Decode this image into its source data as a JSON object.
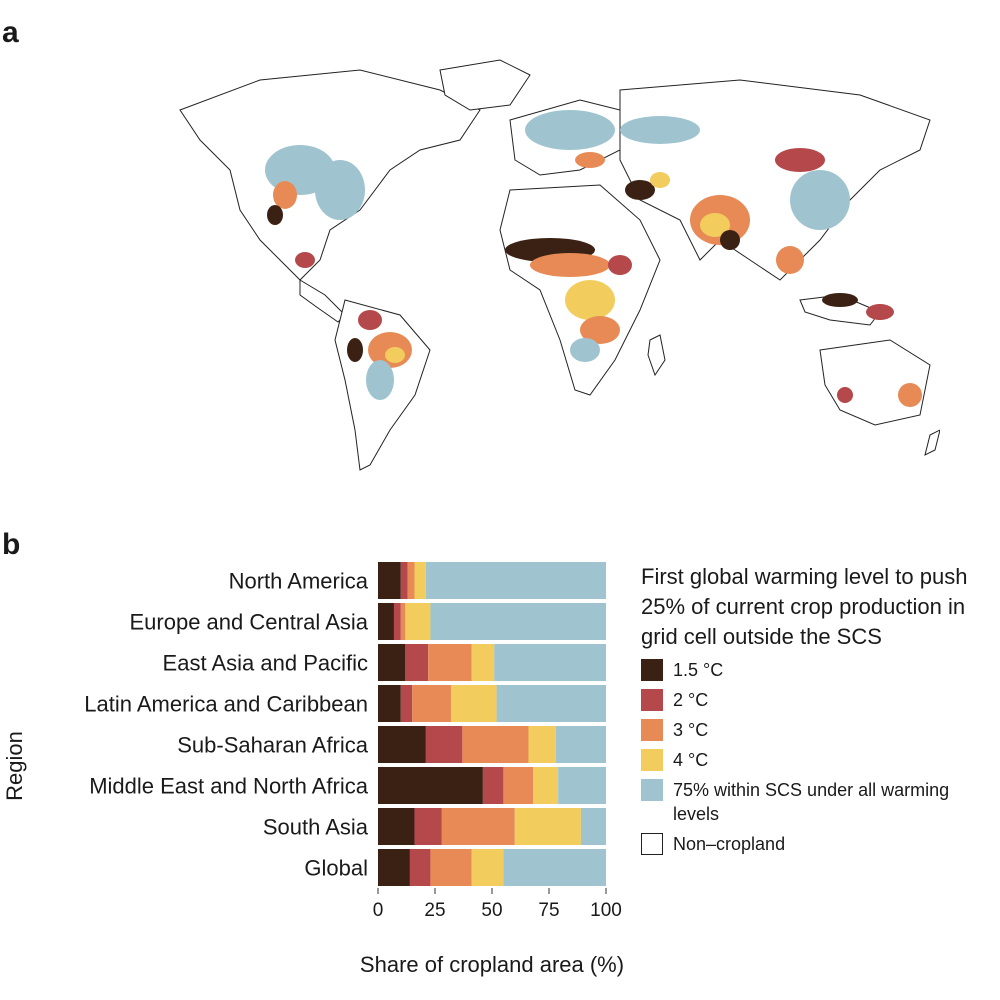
{
  "panels": {
    "a": "a",
    "b": "b"
  },
  "colors": {
    "c15": "#3a2113",
    "c2": "#b5484b",
    "c3": "#e88a55",
    "c4": "#f2cc5d",
    "within": "#9fc4d0",
    "noncrop": "#ffffff",
    "land_outline": "#222222"
  },
  "map": {
    "type": "choropleth-world-map",
    "description_categories": [
      "1.5 °C",
      "2 °C",
      "3 °C",
      "4 °C",
      "75% within SCS under all warming levels",
      "Non–cropland"
    ]
  },
  "legend": {
    "title": "First global warming level to push 25% of current crop production in grid cell outside the SCS",
    "items": [
      {
        "label": "1.5 °C",
        "color": "#3a2113"
      },
      {
        "label": "2 °C",
        "color": "#b5484b"
      },
      {
        "label": "3 °C",
        "color": "#e88a55"
      },
      {
        "label": "4 °C",
        "color": "#f2cc5d"
      },
      {
        "label": "75% within SCS under all warming levels",
        "color": "#9fc4d0"
      },
      {
        "label": "Non–cropland",
        "color": "#ffffff"
      }
    ]
  },
  "chart_data": {
    "type": "bar",
    "orientation": "horizontal",
    "stacked": true,
    "title": "",
    "xlabel": "Share of cropland area (%)",
    "ylabel": "Region",
    "xlim": [
      0,
      100
    ],
    "xticks": [
      0,
      25,
      50,
      75,
      100
    ],
    "categories": [
      "North America",
      "Europe and Central Asia",
      "East Asia and Pacific",
      "Latin America and Caribbean",
      "Sub-Saharan Africa",
      "Middle East and North Africa",
      "South Asia",
      "Global"
    ],
    "series": [
      {
        "name": "1.5 °C",
        "color": "#3a2113",
        "values": [
          10,
          7,
          12,
          10,
          21,
          46,
          16,
          14
        ]
      },
      {
        "name": "2 °C",
        "color": "#b5484b",
        "values": [
          3,
          3,
          10,
          5,
          16,
          9,
          12,
          9
        ]
      },
      {
        "name": "3 °C",
        "color": "#e88a55",
        "values": [
          3,
          2,
          19,
          17,
          29,
          13,
          32,
          18
        ]
      },
      {
        "name": "4 °C",
        "color": "#f2cc5d",
        "values": [
          5,
          11,
          10,
          20,
          12,
          11,
          29,
          14
        ]
      },
      {
        "name": "75% within SCS under all warming levels",
        "color": "#9fc4d0",
        "values": [
          79,
          77,
          49,
          48,
          22,
          21,
          11,
          45
        ]
      }
    ],
    "legend": "right"
  }
}
